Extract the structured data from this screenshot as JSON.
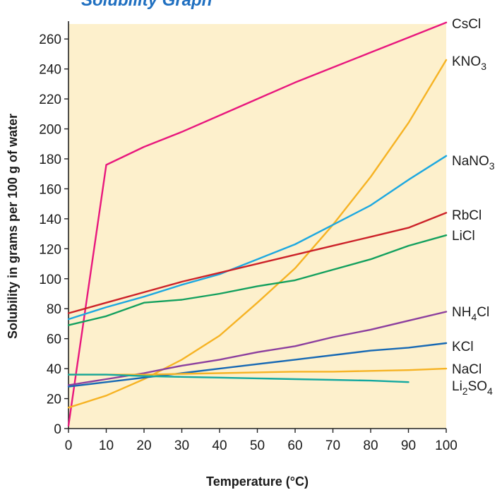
{
  "chart_data": {
    "type": "line",
    "title": "Solubility Graph",
    "xlabel": "Temperature (°C)",
    "ylabel": "Solubility in grams per 100 g of water",
    "xlim": [
      0,
      100
    ],
    "ylim": [
      0,
      270
    ],
    "x_ticks": [
      0,
      10,
      20,
      30,
      40,
      50,
      60,
      70,
      80,
      90,
      100
    ],
    "y_ticks": [
      0,
      20,
      40,
      60,
      80,
      100,
      120,
      140,
      160,
      180,
      200,
      220,
      240,
      260
    ],
    "plot_background": "#fdf0cc",
    "title_color": "#1f6fc0",
    "series": [
      {
        "name": "CsCl",
        "label_main": "CsCl",
        "color": "#e8177d",
        "points": [
          [
            0,
            2
          ],
          [
            10,
            176
          ],
          [
            20,
            188
          ],
          [
            30,
            198
          ],
          [
            40,
            209
          ],
          [
            50,
            220
          ],
          [
            60,
            231
          ],
          [
            70,
            241
          ],
          [
            80,
            251
          ],
          [
            90,
            261
          ],
          [
            100,
            271
          ]
        ]
      },
      {
        "name": "KNO3",
        "label_main": "KNO",
        "label_sub": "3",
        "color": "#f6b324",
        "points": [
          [
            0,
            14
          ],
          [
            10,
            22
          ],
          [
            20,
            33
          ],
          [
            30,
            46
          ],
          [
            40,
            62
          ],
          [
            50,
            84
          ],
          [
            60,
            107
          ],
          [
            70,
            136
          ],
          [
            80,
            168
          ],
          [
            90,
            204
          ],
          [
            100,
            246
          ]
        ]
      },
      {
        "name": "NaNO3",
        "label_main": "NaNO",
        "label_sub": "3",
        "color": "#1da8e0",
        "points": [
          [
            0,
            73
          ],
          [
            10,
            81
          ],
          [
            20,
            88
          ],
          [
            30,
            96
          ],
          [
            40,
            103
          ],
          [
            50,
            113
          ],
          [
            60,
            123
          ],
          [
            70,
            136
          ],
          [
            80,
            149
          ],
          [
            90,
            166
          ],
          [
            100,
            182
          ]
        ]
      },
      {
        "name": "RbCl",
        "label_main": "RbCl",
        "color": "#cc2229",
        "points": [
          [
            0,
            77
          ],
          [
            10,
            84
          ],
          [
            20,
            91
          ],
          [
            30,
            98
          ],
          [
            40,
            104
          ],
          [
            50,
            110
          ],
          [
            60,
            116
          ],
          [
            70,
            122
          ],
          [
            80,
            128
          ],
          [
            90,
            134
          ],
          [
            100,
            144
          ]
        ]
      },
      {
        "name": "LiCl",
        "label_main": "LiCl",
        "color": "#13a05e",
        "points": [
          [
            0,
            69
          ],
          [
            10,
            75
          ],
          [
            20,
            84
          ],
          [
            30,
            86
          ],
          [
            40,
            90
          ],
          [
            50,
            95
          ],
          [
            60,
            99
          ],
          [
            70,
            106
          ],
          [
            80,
            113
          ],
          [
            90,
            122
          ],
          [
            100,
            129
          ]
        ]
      },
      {
        "name": "NH4Cl",
        "label_main": "NH",
        "label_sub": "4",
        "label_tail": "Cl",
        "color": "#8c3f9e",
        "points": [
          [
            0,
            29
          ],
          [
            10,
            33
          ],
          [
            20,
            37
          ],
          [
            30,
            42
          ],
          [
            40,
            46
          ],
          [
            50,
            51
          ],
          [
            60,
            55
          ],
          [
            70,
            61
          ],
          [
            80,
            66
          ],
          [
            90,
            72
          ],
          [
            100,
            78
          ]
        ]
      },
      {
        "name": "KCl",
        "label_main": "KCl",
        "color": "#1769b4",
        "points": [
          [
            0,
            28
          ],
          [
            10,
            31
          ],
          [
            20,
            34
          ],
          [
            30,
            37
          ],
          [
            40,
            40
          ],
          [
            50,
            43
          ],
          [
            60,
            46
          ],
          [
            70,
            49
          ],
          [
            80,
            52
          ],
          [
            90,
            54
          ],
          [
            100,
            57
          ]
        ]
      },
      {
        "name": "NaCl",
        "label_main": "NaCl",
        "color": "#f6b324",
        "points": [
          [
            0,
            36
          ],
          [
            10,
            36
          ],
          [
            20,
            36
          ],
          [
            30,
            36.5
          ],
          [
            40,
            37
          ],
          [
            50,
            37.5
          ],
          [
            60,
            38
          ],
          [
            70,
            38
          ],
          [
            80,
            38.5
          ],
          [
            90,
            39
          ],
          [
            100,
            40
          ]
        ]
      },
      {
        "name": "Li2SO4",
        "label_main": "Li",
        "label_sub": "2",
        "label_tail": "SO",
        "label_sub2": "4",
        "color": "#13a8a0",
        "points": [
          [
            0,
            36
          ],
          [
            10,
            36
          ],
          [
            20,
            35
          ],
          [
            30,
            34.5
          ],
          [
            40,
            34
          ],
          [
            50,
            33.5
          ],
          [
            60,
            33
          ],
          [
            70,
            32.5
          ],
          [
            80,
            32
          ],
          [
            90,
            31
          ]
        ]
      }
    ]
  }
}
